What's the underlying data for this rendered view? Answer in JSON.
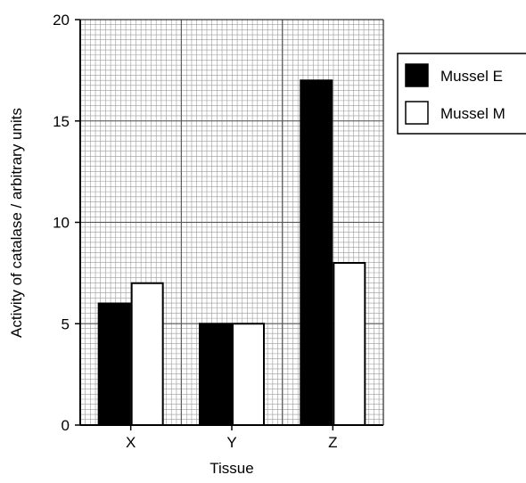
{
  "chart_data": {
    "type": "bar",
    "title": "",
    "xlabel": "Tissue",
    "ylabel": "Activity of catalase / arbitrary units",
    "categories": [
      "X",
      "Y",
      "Z"
    ],
    "series": [
      {
        "name": "Mussel E",
        "values": [
          6,
          5,
          17
        ],
        "color": "#000000"
      },
      {
        "name": "Mussel M",
        "values": [
          7,
          5,
          8
        ],
        "color": "#ffffff"
      }
    ],
    "ylim": [
      0,
      20
    ],
    "yticks": [
      0,
      5,
      10,
      15,
      20
    ],
    "ytick_labels": [
      "0",
      "5",
      "10",
      "15",
      "20"
    ],
    "grid": true,
    "legend_position": "right"
  }
}
